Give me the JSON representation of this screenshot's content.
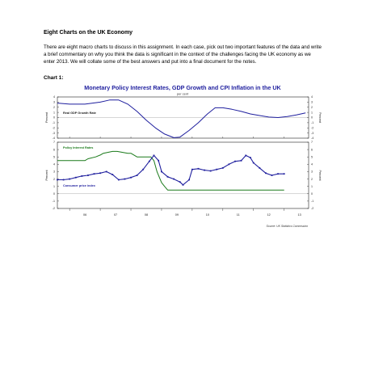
{
  "document": {
    "heading": "Eight Charts on the UK Economy",
    "intro": "There are eight macro charts to discuss in this assignment. In each case, pick out two important features of the data and write a brief commentary on why you think the data is significant in the context of the challenges facing the UK economy as we enter 2013. We will collate some of the best answers and put into a final document for the notes.",
    "chart_label": "Chart 1:"
  },
  "chart_data": {
    "type": "line",
    "title": "Monetary Policy Interest Rates, GDP Growth and CPI Inflation in the UK",
    "subtitle": "per cent",
    "source": "Source: UK Statistics Commission",
    "x_ticks": [
      "06",
      "07",
      "08",
      "09",
      "10",
      "11",
      "12",
      "13"
    ],
    "xlim": [
      2005.6,
      2013.8
    ],
    "panels": [
      {
        "name": "top",
        "ylabel_left": "Percent",
        "ylabel_right": "Percent",
        "ylim": [
          -4,
          4
        ],
        "y_ticks": [
          4,
          3,
          2,
          1,
          0,
          -1,
          -2,
          -3,
          -4
        ],
        "series": [
          {
            "name": "Real GDP Growth Rate",
            "color": "#1f1f9e",
            "x": [
              2005.6,
              2006.0,
              2006.5,
              2007.0,
              2007.3,
              2007.6,
              2007.9,
              2008.2,
              2008.5,
              2008.8,
              2009.1,
              2009.4,
              2009.6,
              2009.9,
              2010.2,
              2010.5,
              2010.75,
              2011.0,
              2011.3,
              2011.6,
              2011.9,
              2012.2,
              2012.5,
              2012.8,
              2013.1,
              2013.4,
              2013.7
            ],
            "y": [
              2.8,
              2.6,
              2.6,
              3.0,
              3.4,
              3.4,
              2.6,
              1.2,
              -0.5,
              -2.0,
              -3.2,
              -3.9,
              -3.8,
              -2.5,
              -1.0,
              0.7,
              1.9,
              1.9,
              1.6,
              1.2,
              0.7,
              0.4,
              0.1,
              0.0,
              0.2,
              0.5,
              0.9
            ]
          }
        ]
      },
      {
        "name": "bottom",
        "ylabel_left": "Percent",
        "ylabel_right": "Percent",
        "ylim": [
          -2,
          7
        ],
        "y_ticks": [
          7,
          6,
          5,
          4,
          3,
          2,
          1,
          0,
          -1,
          -2
        ],
        "series": [
          {
            "name": "Policy Interest Rates",
            "color": "#1a7a1a",
            "x": [
              2005.6,
              2006.5,
              2006.6,
              2006.85,
              2007.0,
              2007.1,
              2007.4,
              2007.55,
              2007.9,
              2008.0,
              2008.1,
              2008.2,
              2008.3,
              2008.65,
              2008.75,
              2008.85,
              2008.95,
              2009.0,
              2009.1,
              2009.2,
              2013.0
            ],
            "y": [
              4.5,
              4.5,
              4.75,
              5.0,
              5.25,
              5.5,
              5.75,
              5.75,
              5.5,
              5.5,
              5.25,
              5.0,
              5.0,
              5.0,
              4.5,
              3.0,
              2.0,
              1.5,
              1.0,
              0.5,
              0.5
            ]
          },
          {
            "name": "Consumer price index",
            "color": "#1f1f9e",
            "x": [
              2005.6,
              2005.8,
              2006.0,
              2006.2,
              2006.4,
              2006.6,
              2006.8,
              2007.0,
              2007.2,
              2007.4,
              2007.6,
              2007.8,
              2008.0,
              2008.2,
              2008.4,
              2008.6,
              2008.75,
              2008.9,
              2009.0,
              2009.2,
              2009.4,
              2009.6,
              2009.7,
              2009.9,
              2010.0,
              2010.2,
              2010.4,
              2010.6,
              2010.8,
              2011.0,
              2011.2,
              2011.4,
              2011.6,
              2011.75,
              2011.9,
              2012.0,
              2012.2,
              2012.4,
              2012.6,
              2012.8,
              2013.0
            ],
            "y": [
              1.9,
              1.9,
              2.0,
              2.2,
              2.4,
              2.5,
              2.7,
              2.8,
              3.0,
              2.6,
              1.9,
              2.0,
              2.2,
              2.5,
              3.3,
              4.4,
              5.2,
              4.5,
              3.0,
              2.3,
              2.0,
              1.6,
              1.2,
              1.9,
              3.3,
              3.4,
              3.2,
              3.1,
              3.3,
              3.5,
              4.0,
              4.4,
              4.5,
              5.2,
              4.9,
              4.2,
              3.5,
              2.8,
              2.5,
              2.7,
              2.7
            ]
          }
        ]
      }
    ]
  }
}
